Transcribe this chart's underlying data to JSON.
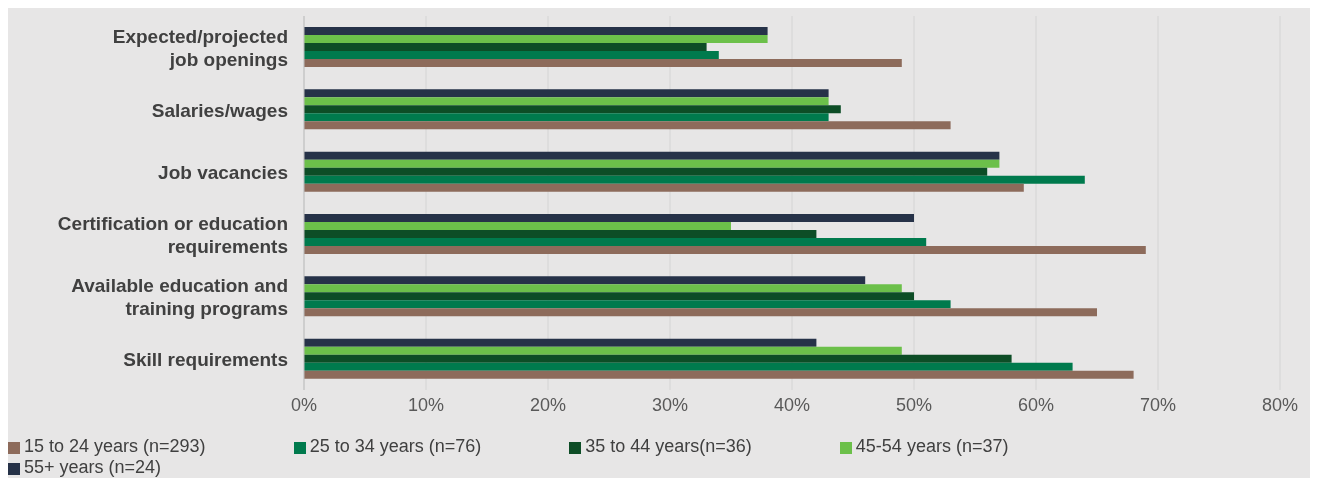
{
  "chart_data": {
    "type": "bar",
    "orientation": "horizontal",
    "categories": [
      "Expected/projected\njob openings",
      "Salaries/wages",
      "Job vacancies",
      "Certification or education\nrequirements",
      "Available education and\ntraining programs",
      "Skill requirements"
    ],
    "series": [
      {
        "name": "55+ years (n=24)",
        "color": "#263248",
        "values": [
          38,
          43,
          57,
          50,
          46,
          42
        ]
      },
      {
        "name": "45-54 years (n=37)",
        "color": "#6cc04a",
        "values": [
          38,
          43,
          57,
          35,
          49,
          49
        ]
      },
      {
        "name": "35 to 44 years(n=36)",
        "color": "#0d4d26",
        "values": [
          33,
          44,
          56,
          42,
          50,
          58
        ]
      },
      {
        "name": "25 to 34 years (n=76)",
        "color": "#007a4d",
        "values": [
          34,
          43,
          64,
          51,
          53,
          63
        ]
      },
      {
        "name": "15 to 24 years (n=293)",
        "color": "#8d6b5b",
        "values": [
          49,
          53,
          59,
          69,
          65,
          68
        ]
      }
    ],
    "xlim": [
      0,
      80
    ],
    "xticks": [
      {
        "value": 0,
        "label": "0%"
      },
      {
        "value": 10,
        "label": "10%"
      },
      {
        "value": 20,
        "label": "20%"
      },
      {
        "value": 30,
        "label": "30%"
      },
      {
        "value": 40,
        "label": "40%"
      },
      {
        "value": 50,
        "label": "50%"
      },
      {
        "value": 60,
        "label": "60%"
      },
      {
        "value": 70,
        "label": "70%"
      },
      {
        "value": 80,
        "label": "80%"
      }
    ],
    "grid": "x",
    "legend": "bottom"
  }
}
